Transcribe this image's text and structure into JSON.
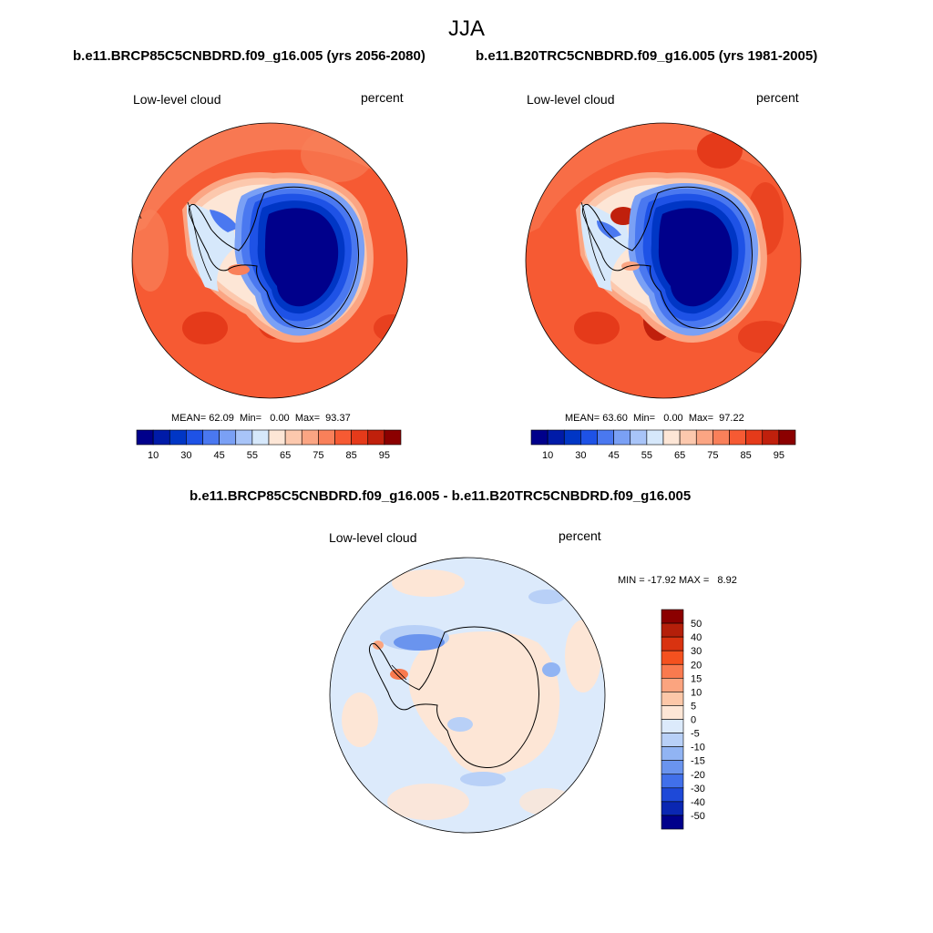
{
  "figure": {
    "title": "JJA"
  },
  "panels": [
    {
      "id": "future",
      "title": "b.e11.BRCP85C5CNBDRD.f09_g16.005 (yrs 2056-2080)",
      "left_label": "Low-level cloud",
      "right_label": "percent",
      "stats": {
        "mean_label": "MEAN=",
        "mean": "62.09",
        "min_label": "Min=",
        "min": "0.00",
        "max_label": "Max=",
        "max": "93.37"
      }
    },
    {
      "id": "historical",
      "title": "b.e11.B20TRC5CNBDRD.f09_g16.005 (yrs 1981-2005)",
      "left_label": "Low-level cloud",
      "right_label": "percent",
      "stats": {
        "mean_label": "MEAN=",
        "mean": "63.60",
        "min_label": "Min=",
        "min": "0.00",
        "max_label": "Max=",
        "max": "97.22"
      }
    },
    {
      "id": "difference",
      "title": "b.e11.BRCP85C5CNBDRD.f09_g16.005 - b.e11.B20TRC5CNBDRD.f09_g16.005",
      "left_label": "Low-level cloud",
      "right_label": "percent",
      "stats_text": "MIN = -17.92 MAX =   8.92"
    }
  ],
  "colorbar_horizontal": {
    "levels": [
      5,
      10,
      20,
      30,
      40,
      45,
      50,
      55,
      60,
      65,
      70,
      75,
      80,
      85,
      90,
      95
    ],
    "tick_labels": [
      "10",
      "30",
      "45",
      "55",
      "65",
      "75",
      "85",
      "95"
    ],
    "colors": [
      "#00008b",
      "#001ba8",
      "#0036c5",
      "#1e52e6",
      "#4a78f0",
      "#7aa0f5",
      "#a8c4f8",
      "#d6e8fb",
      "#fde6d6",
      "#fcc8ad",
      "#fba583",
      "#f9805a",
      "#f65a33",
      "#e53a1a",
      "#c0200c",
      "#8b0000"
    ]
  },
  "colorbar_vertical": {
    "tick_labels": [
      "50",
      "40",
      "30",
      "20",
      "15",
      "10",
      "5",
      "0",
      "-5",
      "-10",
      "-15",
      "-20",
      "-30",
      "-40",
      "-50"
    ],
    "colors": [
      "#8b0000",
      "#b41f0a",
      "#d93310",
      "#f4511f",
      "#f97a4f",
      "#fba47f",
      "#fcc7a8",
      "#fde6d6",
      "#dceafb",
      "#b8d0f7",
      "#91b4f3",
      "#6a94ee",
      "#4170ea",
      "#1e49d8",
      "#0a27b2",
      "#00008b"
    ]
  }
}
